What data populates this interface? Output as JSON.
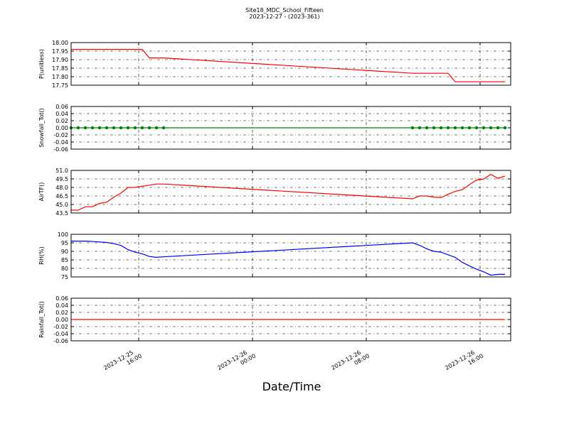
{
  "title": "Site18_MDC_School_Fifteen",
  "subtitle": "2023-12-27 - (2023-361)",
  "x_label": "Date/Time",
  "xlim": [
    "2023-12-25 11:15",
    "2023-12-26 18:09"
  ],
  "xticks": [
    "2023-12-25 16:00",
    "2023-12-26 00:00",
    "2023-12-26 08:00",
    "2023-12-26 16:00"
  ],
  "x": [
    "2023-12-25 11:15",
    "2023-12-25 11:45",
    "2023-12-25 12:15",
    "2023-12-25 12:45",
    "2023-12-25 13:15",
    "2023-12-25 13:45",
    "2023-12-25 14:15",
    "2023-12-25 14:45",
    "2023-12-25 15:15",
    "2023-12-25 15:45",
    "2023-12-25 16:15",
    "2023-12-25 16:45",
    "2023-12-25 17:15",
    "2023-12-25 17:45",
    "2023-12-26 11:15",
    "2023-12-26 11:45",
    "2023-12-26 12:15",
    "2023-12-26 12:45",
    "2023-12-26 13:15",
    "2023-12-26 13:45",
    "2023-12-26 14:15",
    "2023-12-26 14:45",
    "2023-12-26 15:15",
    "2023-12-26 15:45",
    "2023-12-26 16:15",
    "2023-12-26 16:45",
    "2023-12-26 17:15",
    "2023-12-26 17:45"
  ],
  "chart_data": [
    {
      "type": "line",
      "y_label": "P(unitless)",
      "grid": true,
      "ylim": [
        17.75,
        18.0
      ],
      "yticks": [
        17.75,
        {
          "value": 17.8,
          "label": "17.80"
        },
        17.85,
        {
          "value": 17.9,
          "label": "17.90"
        },
        17.95,
        {
          "value": 18.0,
          "label": "18.00"
        }
      ],
      "series": [
        {
          "color": "#ff0000",
          "markers": false,
          "values": [
            17.96,
            17.96,
            17.96,
            17.96,
            17.96,
            17.96,
            17.96,
            17.96,
            17.96,
            17.96,
            17.96,
            17.91,
            17.91,
            17.91,
            17.82,
            17.82,
            17.82,
            17.82,
            17.82,
            17.82,
            17.77,
            17.77,
            17.77,
            17.77,
            17.77,
            17.77,
            17.77,
            17.77
          ]
        }
      ]
    },
    {
      "type": "line",
      "y_label": "Snowfall_Tot()",
      "grid": true,
      "ylim": [
        -0.06,
        0.06
      ],
      "yticks": [
        -0.06,
        -0.04,
        -0.02,
        {
          "value": 0,
          "label": "0.00"
        },
        0.02,
        0.04,
        0.06
      ],
      "series": [
        {
          "color": "#008000",
          "markers": true,
          "values": [
            0,
            0,
            0,
            0,
            0,
            0,
            0,
            0,
            0,
            0,
            0,
            0,
            0,
            0,
            0,
            0,
            0,
            0,
            0,
            0,
            0,
            0,
            0,
            0,
            0,
            0,
            0,
            0
          ]
        }
      ]
    },
    {
      "type": "line",
      "y_label": "AirTF()",
      "grid": true,
      "ylim": [
        43.5,
        51.0
      ],
      "yticks": [
        43.5,
        {
          "value": 45,
          "label": "45.0"
        },
        46.5,
        {
          "value": 48,
          "label": "48.0"
        },
        49.5,
        {
          "value": 51,
          "label": "51.0"
        }
      ],
      "series": [
        {
          "color": "#ff0000",
          "markers": false,
          "values": [
            44.0,
            44.0,
            44.6,
            44.6,
            45.2,
            45.4,
            46.3,
            47.0,
            48.0,
            48.0,
            48.2,
            48.4,
            48.6,
            48.6,
            46.0,
            46.5,
            46.5,
            46.3,
            46.2,
            46.8,
            47.3,
            47.6,
            48.5,
            49.3,
            49.5,
            50.3,
            49.6,
            50.0
          ]
        }
      ]
    },
    {
      "type": "line",
      "y_label": "RH(%)",
      "grid": true,
      "ylim": [
        75,
        100
      ],
      "yticks": [
        75,
        80,
        85,
        90,
        95,
        100
      ],
      "series": [
        {
          "color": "#0000ff",
          "markers": false,
          "values": [
            96.0,
            96.0,
            96.0,
            95.8,
            95.5,
            95.2,
            94.5,
            93.5,
            91.0,
            89.5,
            88.5,
            87.0,
            86.5,
            86.8,
            95.0,
            93.5,
            91.5,
            90.0,
            89.5,
            88.0,
            86.5,
            83.5,
            81.5,
            79.5,
            78.0,
            76.0,
            76.5,
            76.5
          ]
        }
      ]
    },
    {
      "type": "line",
      "y_label": "Rainfall_Tot()",
      "grid": true,
      "ylim": [
        -0.06,
        0.06
      ],
      "yticks": [
        -0.06,
        -0.04,
        -0.02,
        {
          "value": 0,
          "label": "0.00"
        },
        0.02,
        0.04,
        0.06
      ],
      "series": [
        {
          "color": "#ff0000",
          "markers": false,
          "values": [
            0,
            0,
            0,
            0,
            0,
            0,
            0,
            0,
            0,
            0,
            0,
            0,
            0,
            0,
            0,
            0,
            0,
            0,
            0,
            0,
            0,
            0,
            0,
            0,
            0,
            0,
            0,
            0
          ]
        }
      ]
    }
  ]
}
